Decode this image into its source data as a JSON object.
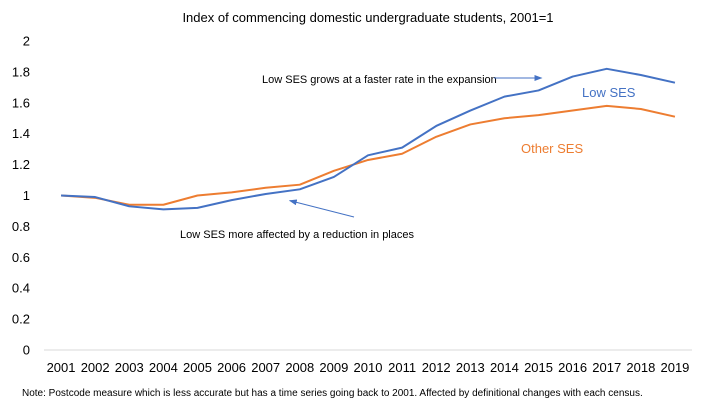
{
  "chart_data": {
    "type": "line",
    "title": "Index of commencing domestic undergraduate students, 2001=1",
    "x": [
      "2001",
      "2002",
      "2003",
      "2004",
      "2005",
      "2006",
      "2007",
      "2008",
      "2009",
      "2010",
      "2011",
      "2012",
      "2013",
      "2014",
      "2015",
      "2016",
      "2017",
      "2018",
      "2019"
    ],
    "ylim": [
      0,
      2
    ],
    "yticks": [
      0,
      0.2,
      0.4,
      0.6,
      0.8,
      1,
      1.2,
      1.4,
      1.6,
      1.8,
      2
    ],
    "ytick_labels": [
      "0",
      "0.2",
      "0.4",
      "0.6",
      "0.8",
      "1",
      "1.2",
      "1.4",
      "1.6",
      "1.8",
      "2"
    ],
    "xlabel": "",
    "ylabel": "",
    "grid": false,
    "series": [
      {
        "name": "Low SES",
        "label": "Low  SES",
        "color": "#4472C4",
        "values": [
          1.0,
          0.99,
          0.93,
          0.91,
          0.92,
          0.97,
          1.01,
          1.04,
          1.12,
          1.26,
          1.31,
          1.45,
          1.55,
          1.64,
          1.68,
          1.77,
          1.82,
          1.78,
          1.73
        ]
      },
      {
        "name": "Other SES",
        "label": "Other SES",
        "color": "#ED7D31",
        "values": [
          1.0,
          0.985,
          0.94,
          0.94,
          1.0,
          1.02,
          1.05,
          1.07,
          1.16,
          1.23,
          1.27,
          1.38,
          1.46,
          1.5,
          1.52,
          1.55,
          1.58,
          1.56,
          1.51
        ]
      }
    ],
    "annotations": [
      {
        "text": "Low SES grows at a faster rate in the expansion",
        "arrow_to": {
          "x": "2015",
          "y": 1.77
        }
      },
      {
        "text": "Low SES more affected by  a reduction in places",
        "arrow_to": {
          "x": "2008",
          "y": 0.98
        }
      }
    ],
    "note": "Note: Postcode measure which is less accurate but has a time series going back to 2001. Affected by definitional changes with each census."
  }
}
